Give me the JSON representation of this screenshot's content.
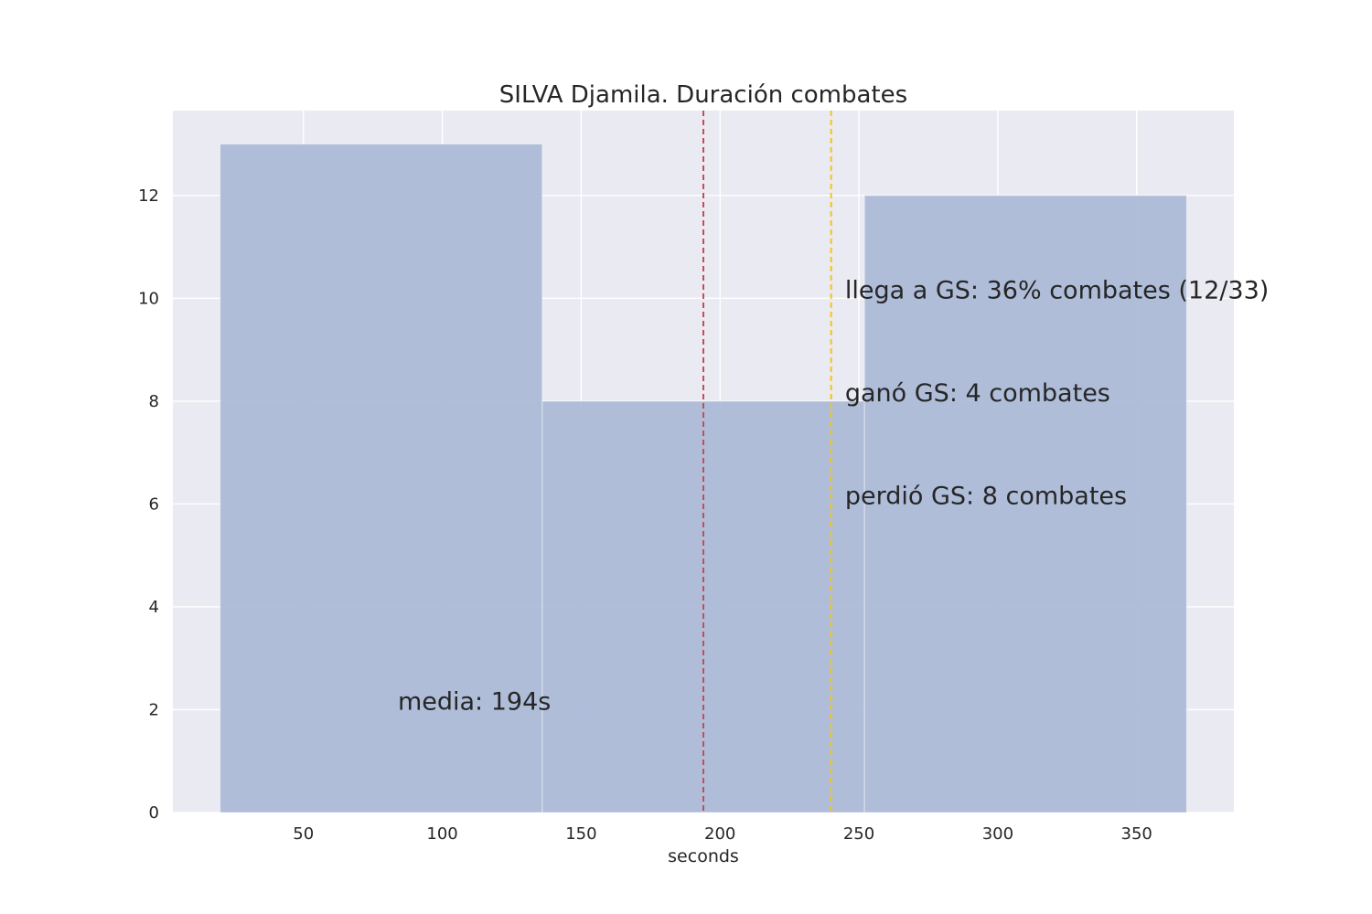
{
  "chart_data": {
    "type": "bar",
    "title": "SILVA Djamila. Duración combates",
    "xlabel": "seconds",
    "ylabel": "",
    "xlim": [
      3,
      385
    ],
    "ylim": [
      0,
      13.65
    ],
    "xticks": [
      50,
      100,
      150,
      200,
      250,
      300,
      350
    ],
    "yticks": [
      0,
      2,
      4,
      6,
      8,
      10,
      12
    ],
    "bins": [
      {
        "x0": 20,
        "x1": 136,
        "count": 13
      },
      {
        "x0": 136,
        "x1": 252,
        "count": 8
      },
      {
        "x0": 252,
        "x1": 368,
        "count": 12
      }
    ],
    "bar_color": "#a9b8d7",
    "grid": true,
    "background": "#eaeaf2",
    "lines": [
      {
        "name": "mean",
        "x": 194,
        "color": "#c44e52"
      },
      {
        "name": "golden-score",
        "x": 240,
        "color": "#f5c518"
      }
    ],
    "annotations": [
      {
        "name": "mean-label",
        "text": "media: 194s",
        "x": 84,
        "y": 2,
        "color": "#c44e52"
      },
      {
        "name": "gs-reached-label",
        "text": "llega a GS: 36% combates (12/33)",
        "x": 245,
        "y": 10,
        "color": "#262626"
      },
      {
        "name": "gs-won-label",
        "text": "ganó GS: 4 combates",
        "x": 245,
        "y": 8,
        "color": "#262626"
      },
      {
        "name": "gs-lost-label",
        "text": "perdió GS: 8 combates",
        "x": 245,
        "y": 6,
        "color": "#262626"
      }
    ]
  }
}
